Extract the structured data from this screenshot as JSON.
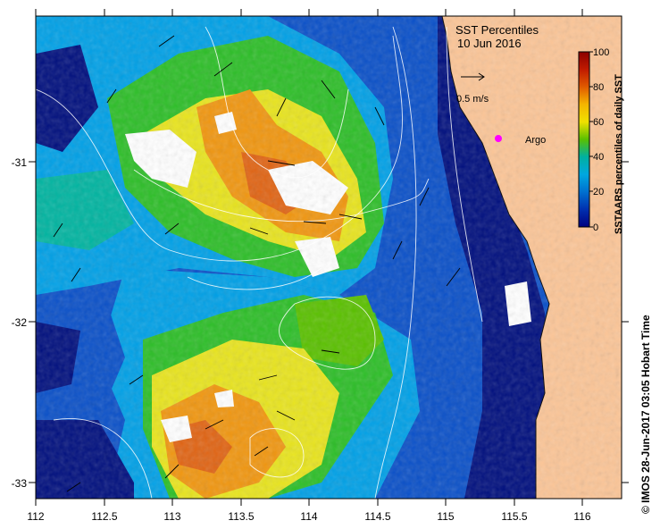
{
  "title": "SST Percentiles",
  "date": "10 Jun 2016",
  "velocity_label": "0.5 m/s",
  "argo_label": "Argo",
  "colorbar": {
    "label": "SSTAARS percentiles of daily SST",
    "ticks": [
      "100",
      "80",
      "60",
      "40",
      "20",
      "0"
    ],
    "colors": [
      "#8b0000",
      "#c01a00",
      "#e05a00",
      "#f08c00",
      "#f5b500",
      "#f0e000",
      "#b8e000",
      "#5ac000",
      "#20b040",
      "#00b0a0",
      "#00a8e0",
      "#0070d0",
      "#0030b0",
      "#000080"
    ]
  },
  "axes": {
    "x_ticks": [
      "112",
      "112.5",
      "113",
      "113.5",
      "114",
      "114.5",
      "115",
      "115.5",
      "116"
    ],
    "y_ticks": [
      "-31",
      "-32",
      "-33"
    ]
  },
  "credit": "© IMOS 28-Jun-2017 03:05 Hobart Time",
  "colors": {
    "land": "#fbc597",
    "deep_blue": "#000f7e",
    "blue": "#0a50c8",
    "cyan": "#00a0e6",
    "teal": "#00b4a0",
    "green": "#2dbe28",
    "yellow": "#e8e41e",
    "orange": "#f09610",
    "dark_orange": "#e06414",
    "argo": "#ff00ff"
  }
}
